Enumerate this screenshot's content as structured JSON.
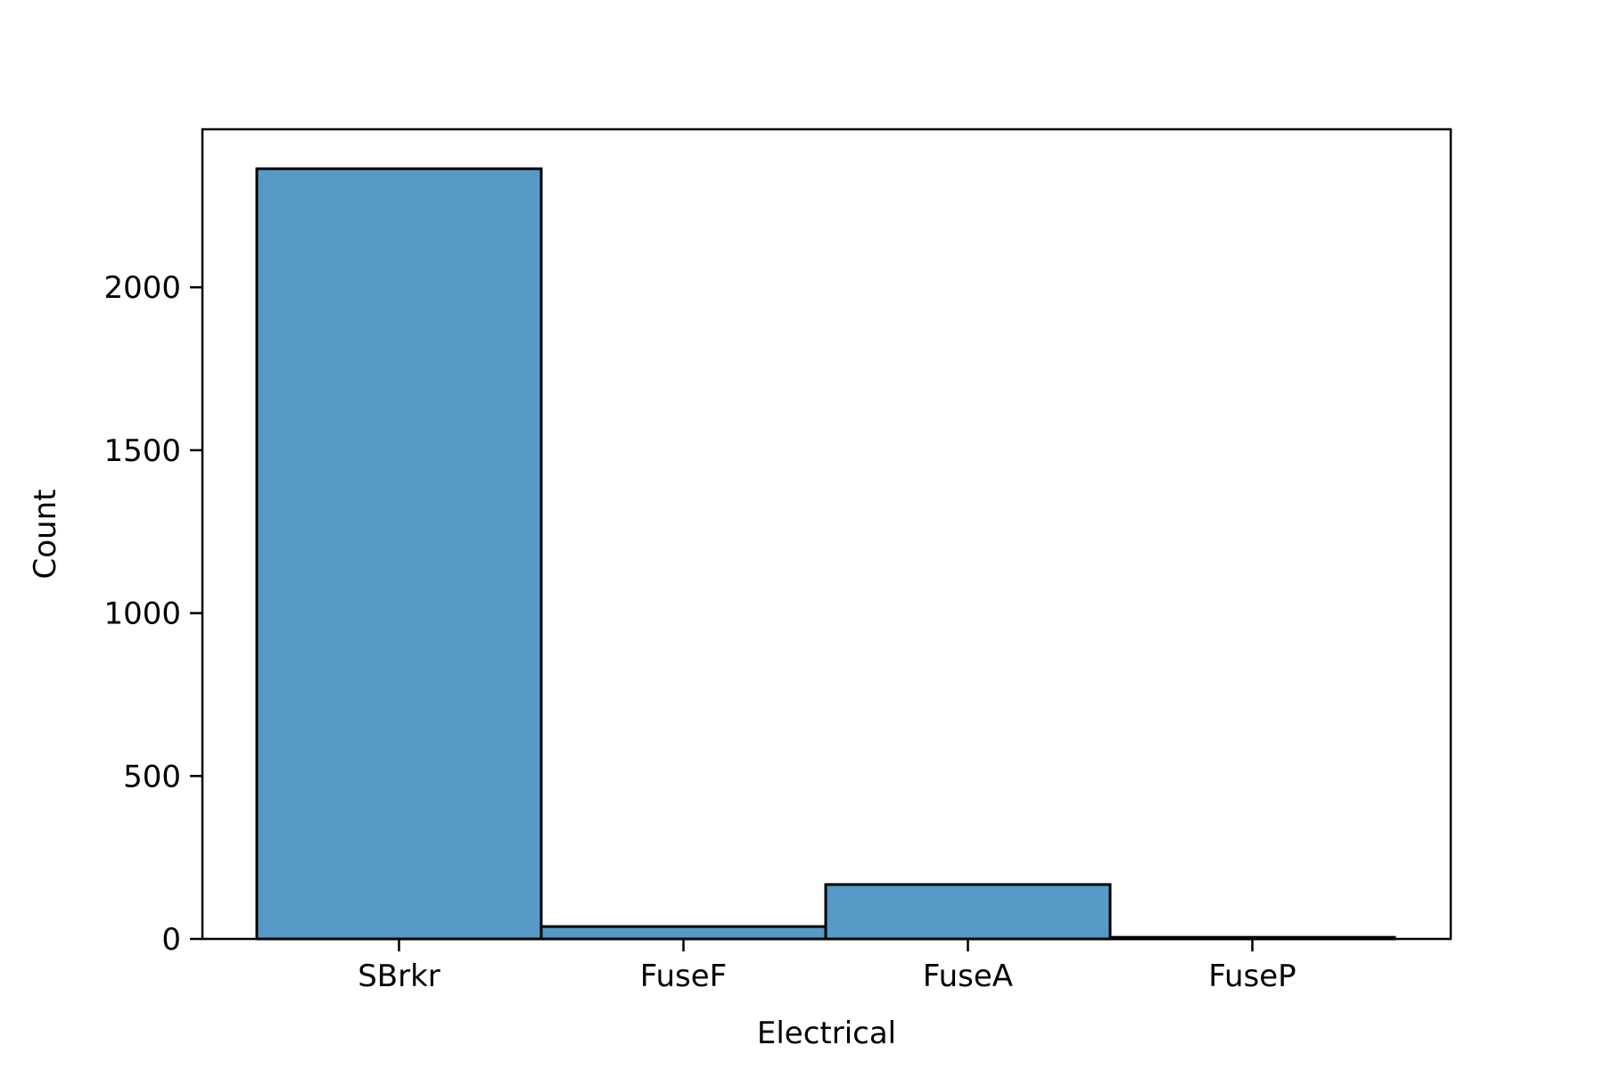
{
  "chart_data": {
    "type": "bar",
    "title": "",
    "xlabel": "Electrical",
    "ylabel": "Count",
    "categories": [
      "SBrkr",
      "FuseF",
      "FuseA",
      "FuseP"
    ],
    "values": [
      2364,
      38,
      167,
      5
    ],
    "ylim": [
      0,
      2485
    ],
    "yticks": [
      0,
      500,
      1000,
      1500,
      2000
    ],
    "ytick_labels": [
      "0",
      "500",
      "1000",
      "1500",
      "2000"
    ],
    "grid": false,
    "legend": "none",
    "bar_color": "#5799c7",
    "edge_color": "#000000"
  }
}
